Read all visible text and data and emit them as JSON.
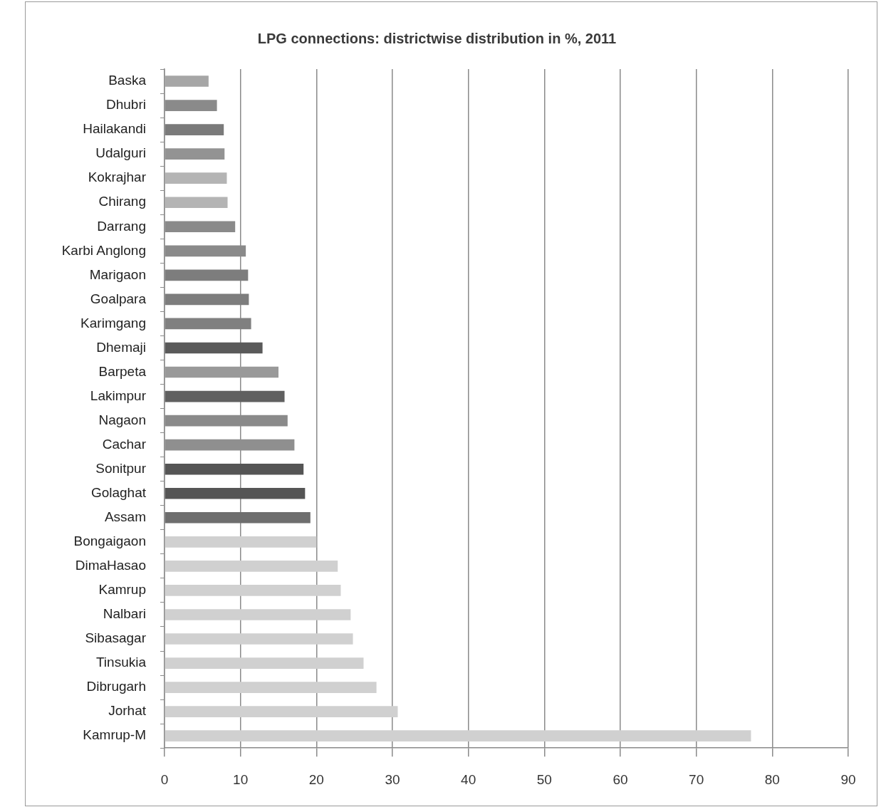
{
  "chart_data": {
    "type": "bar",
    "orientation": "horizontal",
    "title": "LPG connections: districtwise distribution in %, 2011",
    "categories": [
      "Baska",
      "Dhubri",
      "Hailakandi",
      "Udalguri",
      "Kokrajhar",
      "Chirang",
      "Darrang",
      "Karbi Anglong",
      "Marigaon",
      "Goalpara",
      "Karimgang",
      "Dhemaji",
      "Barpeta",
      "Lakimpur",
      "Nagaon",
      "Cachar",
      "Sonitpur",
      "Golaghat",
      "Assam",
      "Bongaigaon",
      "DimaHasao",
      "Kamrup",
      "Nalbari",
      "Sibasagar",
      "Tinsukia",
      "Dibrugarh",
      "Jorhat",
      "Kamrup-M"
    ],
    "values": [
      5.8,
      6.9,
      7.8,
      7.9,
      8.2,
      8.3,
      9.3,
      10.7,
      11.0,
      11.1,
      11.4,
      12.9,
      15.0,
      15.8,
      16.2,
      17.1,
      18.3,
      18.5,
      19.2,
      20.0,
      22.8,
      23.2,
      24.5,
      24.8,
      26.2,
      27.9,
      30.7,
      77.2
    ],
    "colors": [
      "#a6a6a6",
      "#8a8a8a",
      "#7a7a7a",
      "#939393",
      "#b4b4b4",
      "#b4b4b4",
      "#8a8a8a",
      "#8a8a8a",
      "#7d7d7d",
      "#7d7d7d",
      "#808080",
      "#5a5a5a",
      "#999999",
      "#606060",
      "#8a8a8a",
      "#8f8f8f",
      "#555555",
      "#555555",
      "#6e6e6e",
      "#d0d0d0",
      "#d0d0d0",
      "#d0d0d0",
      "#d0d0d0",
      "#d0d0d0",
      "#d0d0d0",
      "#d0d0d0",
      "#d0d0d0",
      "#d0d0d0"
    ],
    "xlim": [
      0,
      90
    ],
    "xticks": [
      0,
      10,
      20,
      30,
      40,
      50,
      60,
      70,
      80,
      90
    ],
    "grid": "x",
    "legend": false
  }
}
